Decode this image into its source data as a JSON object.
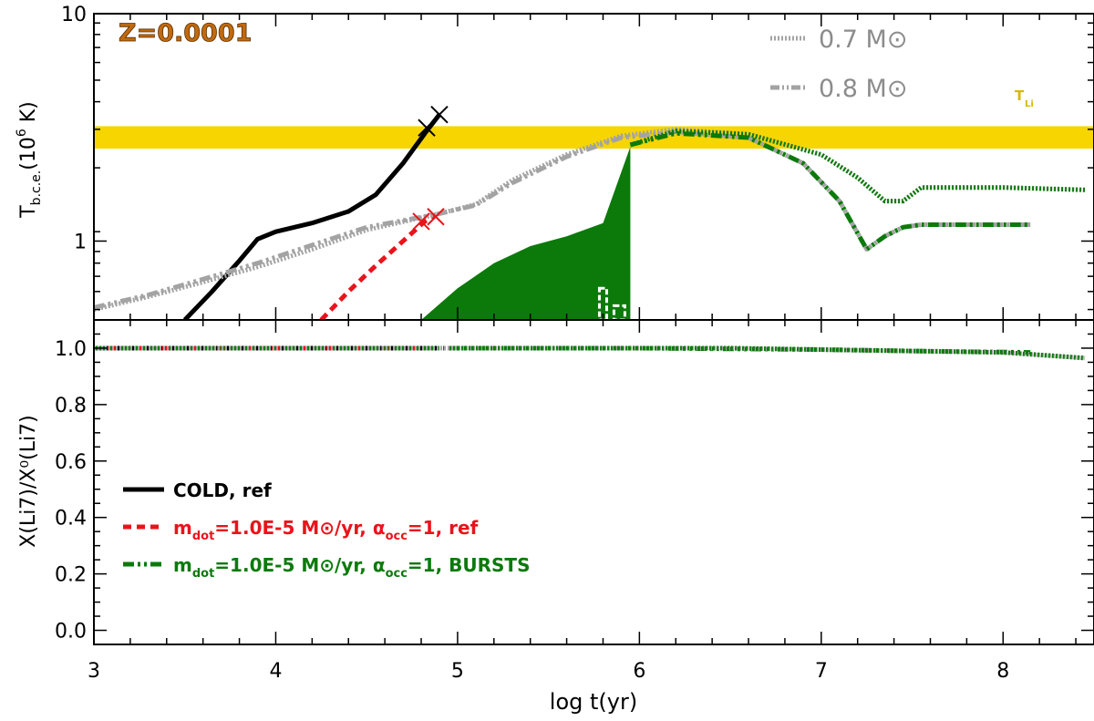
{
  "colors": {
    "black": "#000000",
    "red": "#e8141b",
    "green": "#0b7a0b",
    "grey": "#a3a3a3",
    "grey_text": "#8c8c8c",
    "band": "#f7d500",
    "band_label": "#d8b800",
    "z_label": "#c06a10"
  },
  "chart_data": [
    {
      "type": "line",
      "panel": "top",
      "ylabel": "T_b.c.e.(10^6 K)",
      "xlim": [
        3,
        8.5
      ],
      "ylim": [
        0.45,
        10
      ],
      "yscale": "log",
      "ytick_labels": [
        "1",
        "10"
      ],
      "annotations": {
        "metallicity": "Z=0.0001",
        "band_label": "T_Li",
        "mass_07": "0.7 M⊙",
        "mass_08": "0.8 M⊙"
      },
      "band": {
        "ymin": 2.55,
        "ymax": 3.2
      },
      "series": [
        {
          "style": "solid",
          "color_key": "black",
          "x": [
            3.5,
            3.65,
            3.8,
            3.9,
            4.0,
            4.2,
            4.4,
            4.55,
            4.7,
            4.83,
            4.9
          ],
          "y": [
            0.45,
            0.6,
            0.82,
            1.02,
            1.1,
            1.2,
            1.35,
            1.6,
            2.2,
            3.05,
            3.6
          ]
        },
        {
          "style": "dashed",
          "color_key": "red",
          "x": [
            4.25,
            4.4,
            4.55,
            4.7,
            4.82,
            4.88
          ],
          "y": [
            0.45,
            0.6,
            0.78,
            1.0,
            1.22,
            1.3
          ]
        },
        {
          "style": "dotted",
          "color_key": "grey",
          "label": "0.7 M⊙",
          "x": [
            3.0,
            3.3,
            3.6,
            3.9,
            4.2,
            4.5,
            4.9,
            5.1,
            5.3,
            5.6,
            5.9,
            6.2,
            6.6,
            7.0,
            7.2,
            7.35,
            7.45,
            7.55,
            8.0,
            8.45
          ],
          "y": [
            0.5,
            0.57,
            0.66,
            0.77,
            0.92,
            1.12,
            1.32,
            1.45,
            1.85,
            2.4,
            2.9,
            3.1,
            2.95,
            2.4,
            1.9,
            1.5,
            1.5,
            1.72,
            1.72,
            1.68
          ]
        },
        {
          "style": "dash-dot",
          "color_key": "grey",
          "label": "0.8 M⊙",
          "x": [
            3.0,
            3.3,
            3.6,
            3.9,
            4.2,
            4.5,
            4.9,
            5.1,
            5.3,
            5.6,
            5.9,
            6.2,
            6.6,
            6.9,
            7.1,
            7.25,
            7.35,
            7.45,
            7.55,
            8.0,
            8.15
          ],
          "y": [
            0.51,
            0.58,
            0.68,
            0.8,
            0.96,
            1.15,
            1.32,
            1.44,
            1.8,
            2.35,
            2.85,
            3.02,
            2.85,
            2.2,
            1.5,
            0.92,
            1.05,
            1.15,
            1.18,
            1.18,
            1.18
          ]
        },
        {
          "style": "dotted",
          "color_key": "green",
          "x": [
            5.95,
            6.2,
            6.6,
            7.0,
            7.2,
            7.35,
            7.45,
            7.55,
            8.0,
            8.45
          ],
          "y": [
            2.65,
            3.05,
            2.95,
            2.4,
            1.9,
            1.5,
            1.5,
            1.72,
            1.72,
            1.68
          ]
        },
        {
          "style": "dash-dot",
          "color_key": "green",
          "x": [
            5.95,
            6.2,
            6.6,
            6.9,
            7.1,
            7.25,
            7.35,
            7.45,
            7.55,
            8.0,
            8.15
          ],
          "y": [
            2.65,
            2.98,
            2.85,
            2.2,
            1.5,
            0.92,
            1.05,
            1.15,
            1.18,
            1.18,
            1.18
          ]
        },
        {
          "style": "burst-fill",
          "color_key": "green",
          "x": [
            4.8,
            5.0,
            5.2,
            5.4,
            5.6,
            5.8,
            5.95,
            5.95,
            5.8,
            5.6,
            5.4,
            5.2,
            5.0,
            4.8
          ],
          "y": [
            0.45,
            0.62,
            0.8,
            0.95,
            1.05,
            1.2,
            2.6,
            0.45,
            0.45,
            0.45,
            0.45,
            0.45,
            0.45,
            0.45
          ]
        }
      ]
    },
    {
      "type": "line",
      "panel": "bottom",
      "xlabel": "log t(yr)",
      "ylabel": "X(Li7)/X⁰(Li7)",
      "xlim": [
        3,
        8.5
      ],
      "ylim": [
        -0.05,
        1.1
      ],
      "x_tick_labels": [
        "3",
        "4",
        "5",
        "6",
        "7",
        "8"
      ],
      "y_tick_labels": [
        "0.0",
        "0.2",
        "0.4",
        "0.6",
        "0.8",
        "1.0"
      ],
      "series": [
        {
          "style": "solid",
          "color_key": "black",
          "label": "COLD, ref",
          "x": [
            3.0,
            4.9
          ],
          "y": [
            1.0,
            1.0
          ]
        },
        {
          "style": "dashed",
          "color_key": "red",
          "label": "m_dot=1.0E-5 M⊙/yr, α_occ=1, ref",
          "x": [
            3.0,
            4.88
          ],
          "y": [
            1.0,
            1.0
          ]
        },
        {
          "style": "dash-dot",
          "color_key": "green",
          "label": "m_dot=1.0E-5 M⊙/yr, α_occ=1, BURSTS",
          "x": [
            3.0,
            6.0,
            7.0,
            7.5,
            8.15
          ],
          "y": [
            1.0,
            1.0,
            0.995,
            0.99,
            0.985
          ]
        },
        {
          "style": "dotted",
          "color_key": "grey",
          "x": [
            3.0,
            6.5,
            7.5,
            8.0,
            8.45
          ],
          "y": [
            1.0,
            1.0,
            0.99,
            0.985,
            0.965
          ]
        },
        {
          "style": "dotted",
          "color_key": "green",
          "x": [
            5.0,
            6.5,
            7.5,
            8.0,
            8.45
          ],
          "y": [
            1.0,
            1.0,
            0.99,
            0.985,
            0.965
          ]
        }
      ]
    }
  ],
  "legend": {
    "items": [
      {
        "prefix": "COLD, ref",
        "color_key": "black",
        "style": "solid"
      },
      {
        "prefix": "m",
        "sub": "dot",
        "rest": "=1.0E-5 M⊙/yr, α",
        "sub2": "occ",
        "tail": "=1, ref",
        "color_key": "red",
        "style": "dashed"
      },
      {
        "prefix": "m",
        "sub": "dot",
        "rest": "=1.0E-5 M⊙/yr, α",
        "sub2": "occ",
        "tail": "=1, BURSTS",
        "color_key": "green",
        "style": "dash-dot"
      }
    ]
  }
}
